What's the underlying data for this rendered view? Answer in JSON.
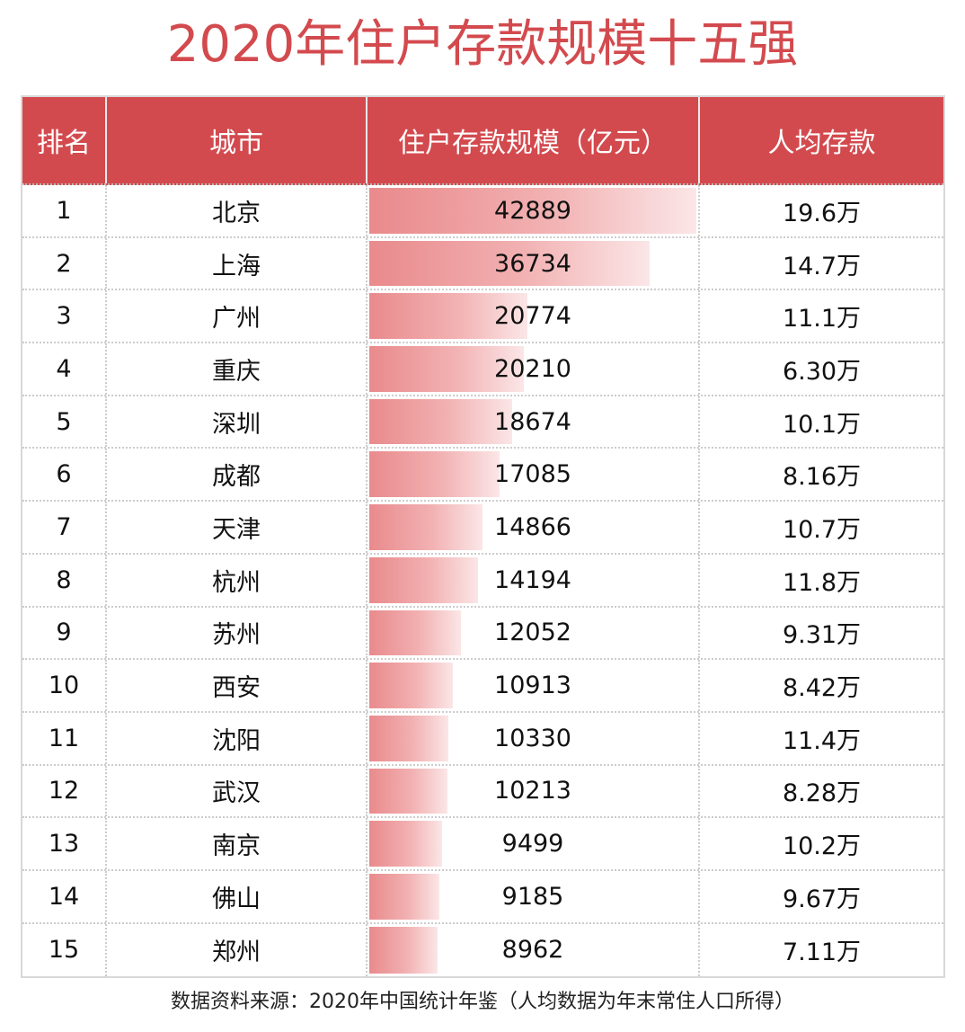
{
  "title": "2020年住户存款规模十五强",
  "footer": "数据资料来源：2020年中国统计年鉴（人均数据为年末常住人口所得）",
  "colors": {
    "header": "#d34a4e",
    "bar_start": "#e98a8c",
    "bar_end": "#fbe6e7"
  },
  "chart_data": {
    "type": "table",
    "columns": [
      "排名",
      "城市",
      "住户存款规模（亿元）",
      "人均存款"
    ],
    "rows": [
      {
        "rank": "1",
        "city": "北京",
        "deposit": 42889,
        "per_capita": "19.6万"
      },
      {
        "rank": "2",
        "city": "上海",
        "deposit": 36734,
        "per_capita": "14.7万"
      },
      {
        "rank": "3",
        "city": "广州",
        "deposit": 20774,
        "per_capita": "11.1万"
      },
      {
        "rank": "4",
        "city": "重庆",
        "deposit": 20210,
        "per_capita": "6.30万"
      },
      {
        "rank": "5",
        "city": "深圳",
        "deposit": 18674,
        "per_capita": "10.1万"
      },
      {
        "rank": "6",
        "city": "成都",
        "deposit": 17085,
        "per_capita": "8.16万"
      },
      {
        "rank": "7",
        "city": "天津",
        "deposit": 14866,
        "per_capita": "10.7万"
      },
      {
        "rank": "8",
        "city": "杭州",
        "deposit": 14194,
        "per_capita": "11.8万"
      },
      {
        "rank": "9",
        "city": "苏州",
        "deposit": 12052,
        "per_capita": "9.31万"
      },
      {
        "rank": "10",
        "city": "西安",
        "deposit": 10913,
        "per_capita": "8.42万"
      },
      {
        "rank": "11",
        "city": "沈阳",
        "deposit": 10330,
        "per_capita": "11.4万"
      },
      {
        "rank": "12",
        "city": "武汉",
        "deposit": 10213,
        "per_capita": "8.28万"
      },
      {
        "rank": "13",
        "city": "南京",
        "deposit": 9499,
        "per_capita": "10.2万"
      },
      {
        "rank": "14",
        "city": "佛山",
        "deposit": 9185,
        "per_capita": "9.67万"
      },
      {
        "rank": "15",
        "city": "郑州",
        "deposit": 8962,
        "per_capita": "7.11万"
      }
    ]
  }
}
